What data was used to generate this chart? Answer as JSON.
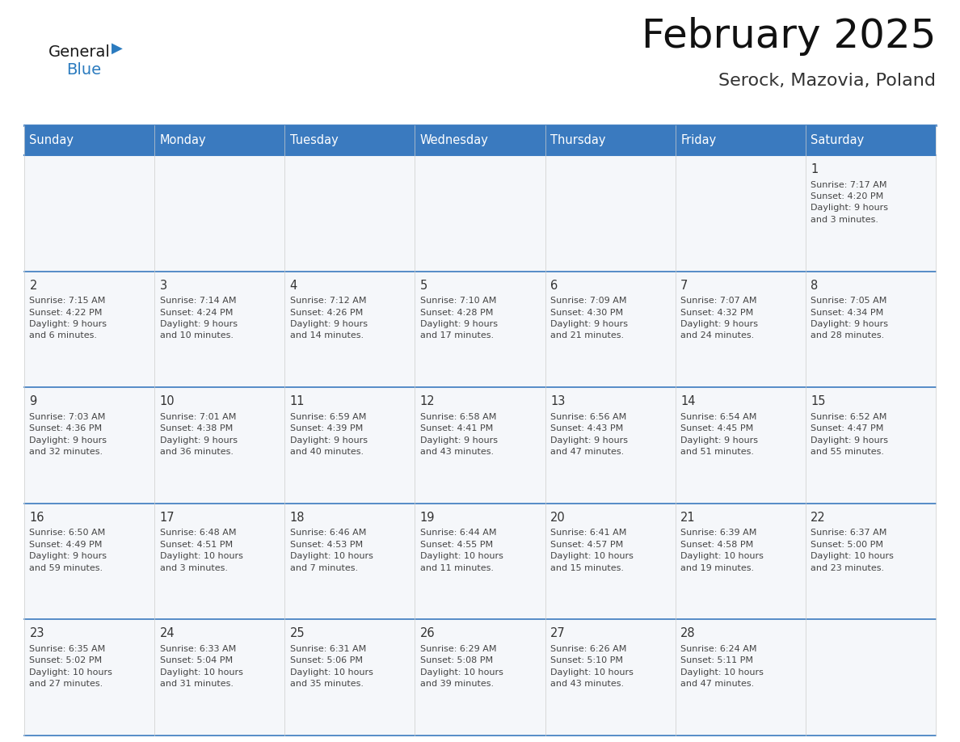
{
  "title": "February 2025",
  "subtitle": "Serock, Mazovia, Poland",
  "header_bg": "#3a7abf",
  "header_text_color": "#ffffff",
  "cell_bg": "#f5f7fa",
  "border_color": "#3a7abf",
  "separator_color": "#3a7abf",
  "day_number_color": "#333333",
  "info_text_color": "#444444",
  "days_of_week": [
    "Sunday",
    "Monday",
    "Tuesday",
    "Wednesday",
    "Thursday",
    "Friday",
    "Saturday"
  ],
  "weeks": [
    [
      {
        "day": null,
        "info": null
      },
      {
        "day": null,
        "info": null
      },
      {
        "day": null,
        "info": null
      },
      {
        "day": null,
        "info": null
      },
      {
        "day": null,
        "info": null
      },
      {
        "day": null,
        "info": null
      },
      {
        "day": "1",
        "info": "Sunrise: 7:17 AM\nSunset: 4:20 PM\nDaylight: 9 hours\nand 3 minutes."
      }
    ],
    [
      {
        "day": "2",
        "info": "Sunrise: 7:15 AM\nSunset: 4:22 PM\nDaylight: 9 hours\nand 6 minutes."
      },
      {
        "day": "3",
        "info": "Sunrise: 7:14 AM\nSunset: 4:24 PM\nDaylight: 9 hours\nand 10 minutes."
      },
      {
        "day": "4",
        "info": "Sunrise: 7:12 AM\nSunset: 4:26 PM\nDaylight: 9 hours\nand 14 minutes."
      },
      {
        "day": "5",
        "info": "Sunrise: 7:10 AM\nSunset: 4:28 PM\nDaylight: 9 hours\nand 17 minutes."
      },
      {
        "day": "6",
        "info": "Sunrise: 7:09 AM\nSunset: 4:30 PM\nDaylight: 9 hours\nand 21 minutes."
      },
      {
        "day": "7",
        "info": "Sunrise: 7:07 AM\nSunset: 4:32 PM\nDaylight: 9 hours\nand 24 minutes."
      },
      {
        "day": "8",
        "info": "Sunrise: 7:05 AM\nSunset: 4:34 PM\nDaylight: 9 hours\nand 28 minutes."
      }
    ],
    [
      {
        "day": "9",
        "info": "Sunrise: 7:03 AM\nSunset: 4:36 PM\nDaylight: 9 hours\nand 32 minutes."
      },
      {
        "day": "10",
        "info": "Sunrise: 7:01 AM\nSunset: 4:38 PM\nDaylight: 9 hours\nand 36 minutes."
      },
      {
        "day": "11",
        "info": "Sunrise: 6:59 AM\nSunset: 4:39 PM\nDaylight: 9 hours\nand 40 minutes."
      },
      {
        "day": "12",
        "info": "Sunrise: 6:58 AM\nSunset: 4:41 PM\nDaylight: 9 hours\nand 43 minutes."
      },
      {
        "day": "13",
        "info": "Sunrise: 6:56 AM\nSunset: 4:43 PM\nDaylight: 9 hours\nand 47 minutes."
      },
      {
        "day": "14",
        "info": "Sunrise: 6:54 AM\nSunset: 4:45 PM\nDaylight: 9 hours\nand 51 minutes."
      },
      {
        "day": "15",
        "info": "Sunrise: 6:52 AM\nSunset: 4:47 PM\nDaylight: 9 hours\nand 55 minutes."
      }
    ],
    [
      {
        "day": "16",
        "info": "Sunrise: 6:50 AM\nSunset: 4:49 PM\nDaylight: 9 hours\nand 59 minutes."
      },
      {
        "day": "17",
        "info": "Sunrise: 6:48 AM\nSunset: 4:51 PM\nDaylight: 10 hours\nand 3 minutes."
      },
      {
        "day": "18",
        "info": "Sunrise: 6:46 AM\nSunset: 4:53 PM\nDaylight: 10 hours\nand 7 minutes."
      },
      {
        "day": "19",
        "info": "Sunrise: 6:44 AM\nSunset: 4:55 PM\nDaylight: 10 hours\nand 11 minutes."
      },
      {
        "day": "20",
        "info": "Sunrise: 6:41 AM\nSunset: 4:57 PM\nDaylight: 10 hours\nand 15 minutes."
      },
      {
        "day": "21",
        "info": "Sunrise: 6:39 AM\nSunset: 4:58 PM\nDaylight: 10 hours\nand 19 minutes."
      },
      {
        "day": "22",
        "info": "Sunrise: 6:37 AM\nSunset: 5:00 PM\nDaylight: 10 hours\nand 23 minutes."
      }
    ],
    [
      {
        "day": "23",
        "info": "Sunrise: 6:35 AM\nSunset: 5:02 PM\nDaylight: 10 hours\nand 27 minutes."
      },
      {
        "day": "24",
        "info": "Sunrise: 6:33 AM\nSunset: 5:04 PM\nDaylight: 10 hours\nand 31 minutes."
      },
      {
        "day": "25",
        "info": "Sunrise: 6:31 AM\nSunset: 5:06 PM\nDaylight: 10 hours\nand 35 minutes."
      },
      {
        "day": "26",
        "info": "Sunrise: 6:29 AM\nSunset: 5:08 PM\nDaylight: 10 hours\nand 39 minutes."
      },
      {
        "day": "27",
        "info": "Sunrise: 6:26 AM\nSunset: 5:10 PM\nDaylight: 10 hours\nand 43 minutes."
      },
      {
        "day": "28",
        "info": "Sunrise: 6:24 AM\nSunset: 5:11 PM\nDaylight: 10 hours\nand 47 minutes."
      },
      {
        "day": null,
        "info": null
      }
    ]
  ]
}
